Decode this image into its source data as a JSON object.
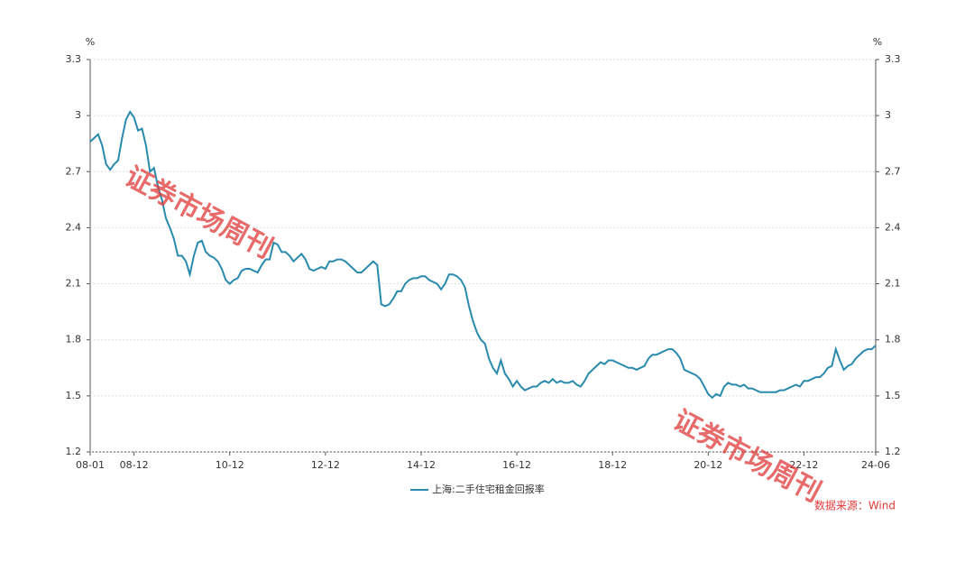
{
  "chart_data": {
    "type": "line",
    "y_unit": "%",
    "y2_unit": "%",
    "categories": [
      "08-01",
      null,
      null,
      null,
      null,
      null,
      null,
      null,
      null,
      null,
      null,
      "08-12",
      null,
      null,
      null,
      null,
      null,
      null,
      null,
      null,
      null,
      null,
      null,
      null,
      null,
      null,
      null,
      null,
      null,
      null,
      null,
      null,
      null,
      null,
      null,
      "10-12",
      null,
      null,
      null,
      null,
      null,
      null,
      null,
      null,
      null,
      null,
      null,
      null,
      null,
      null,
      null,
      null,
      null,
      null,
      null,
      null,
      null,
      null,
      null,
      "12-12",
      null,
      null,
      null,
      null,
      null,
      null,
      null,
      null,
      null,
      null,
      null,
      null,
      null,
      null,
      null,
      null,
      null,
      null,
      null,
      null,
      null,
      null,
      null,
      "14-12",
      null,
      null,
      null,
      null,
      null,
      null,
      null,
      null,
      null,
      null,
      null,
      null,
      null,
      null,
      null,
      null,
      null,
      null,
      null,
      null,
      null,
      null,
      null,
      "16-12",
      null,
      null,
      null,
      null,
      null,
      null,
      null,
      null,
      null,
      null,
      null,
      null,
      null,
      null,
      null,
      null,
      null,
      null,
      null,
      null,
      null,
      null,
      null,
      "18-12",
      null,
      null,
      null,
      null,
      null,
      null,
      null,
      null,
      null,
      null,
      null,
      null,
      null,
      null,
      null,
      null,
      null,
      null,
      null,
      null,
      null,
      null,
      null,
      "20-12",
      null,
      null,
      null,
      null,
      null,
      null,
      null,
      null,
      null,
      null,
      null,
      null,
      null,
      null,
      null,
      null,
      null,
      null,
      null,
      null,
      null,
      null,
      null,
      "22-12",
      null,
      null,
      null,
      null,
      null,
      null,
      null,
      null,
      null,
      null,
      null,
      null,
      null,
      null,
      null,
      null,
      null,
      "24-06"
    ],
    "series": [
      {
        "name": "上海:二手住宅租金回报率",
        "color": "#2a8aad",
        "values": [
          2.86,
          2.88,
          2.9,
          2.84,
          2.74,
          2.71,
          2.74,
          2.76,
          2.88,
          2.98,
          3.02,
          2.99,
          2.92,
          2.93,
          2.84,
          2.7,
          2.72,
          2.62,
          2.55,
          2.45,
          2.4,
          2.34,
          2.25,
          2.25,
          2.22,
          2.15,
          2.25,
          2.32,
          2.33,
          2.27,
          2.25,
          2.24,
          2.22,
          2.18,
          2.12,
          2.1,
          2.12,
          2.13,
          2.17,
          2.18,
          2.18,
          2.17,
          2.16,
          2.2,
          2.23,
          2.23,
          2.32,
          2.31,
          2.27,
          2.27,
          2.25,
          2.22,
          2.24,
          2.26,
          2.23,
          2.18,
          2.17,
          2.18,
          2.19,
          2.18,
          2.22,
          2.22,
          2.23,
          2.23,
          2.22,
          2.2,
          2.18,
          2.16,
          2.16,
          2.18,
          2.2,
          2.22,
          2.2,
          1.99,
          1.98,
          1.99,
          2.02,
          2.06,
          2.06,
          2.1,
          2.12,
          2.13,
          2.13,
          2.14,
          2.14,
          2.12,
          2.11,
          2.1,
          2.07,
          2.1,
          2.15,
          2.15,
          2.14,
          2.12,
          2.08,
          1.98,
          1.9,
          1.84,
          1.8,
          1.78,
          1.7,
          1.65,
          1.62,
          1.69,
          1.62,
          1.59,
          1.55,
          1.58,
          1.55,
          1.53,
          1.54,
          1.55,
          1.55,
          1.57,
          1.58,
          1.57,
          1.59,
          1.57,
          1.58,
          1.57,
          1.57,
          1.58,
          1.56,
          1.55,
          1.58,
          1.62,
          1.64,
          1.66,
          1.68,
          1.67,
          1.69,
          1.69,
          1.68,
          1.67,
          1.66,
          1.65,
          1.65,
          1.64,
          1.65,
          1.66,
          1.7,
          1.72,
          1.72,
          1.73,
          1.74,
          1.75,
          1.75,
          1.73,
          1.7,
          1.64,
          1.63,
          1.62,
          1.61,
          1.59,
          1.55,
          1.51,
          1.49,
          1.51,
          1.5,
          1.55,
          1.57,
          1.56,
          1.56,
          1.55,
          1.56,
          1.54,
          1.54,
          1.53,
          1.52,
          1.52,
          1.52,
          1.52,
          1.52,
          1.53,
          1.53,
          1.54,
          1.55,
          1.56,
          1.55,
          1.58,
          1.58,
          1.59,
          1.6,
          1.6,
          1.62,
          1.65,
          1.66,
          1.75,
          1.69,
          1.64,
          1.66,
          1.67,
          1.7,
          1.72,
          1.74,
          1.75,
          1.75,
          1.77
        ]
      }
    ],
    "ylim": [
      1.2,
      3.3
    ],
    "yticks": [
      1.2,
      1.5,
      1.8,
      2.1,
      2.4,
      2.7,
      3,
      3.3
    ],
    "y2lim": [
      1.2,
      3.3
    ],
    "y2ticks": [
      1.2,
      1.5,
      1.8,
      2.1,
      2.4,
      2.7,
      3,
      3.3
    ],
    "grid": true,
    "legend": "bottom",
    "source": "数据来源：Wind",
    "watermark": "证券市场周刊"
  }
}
